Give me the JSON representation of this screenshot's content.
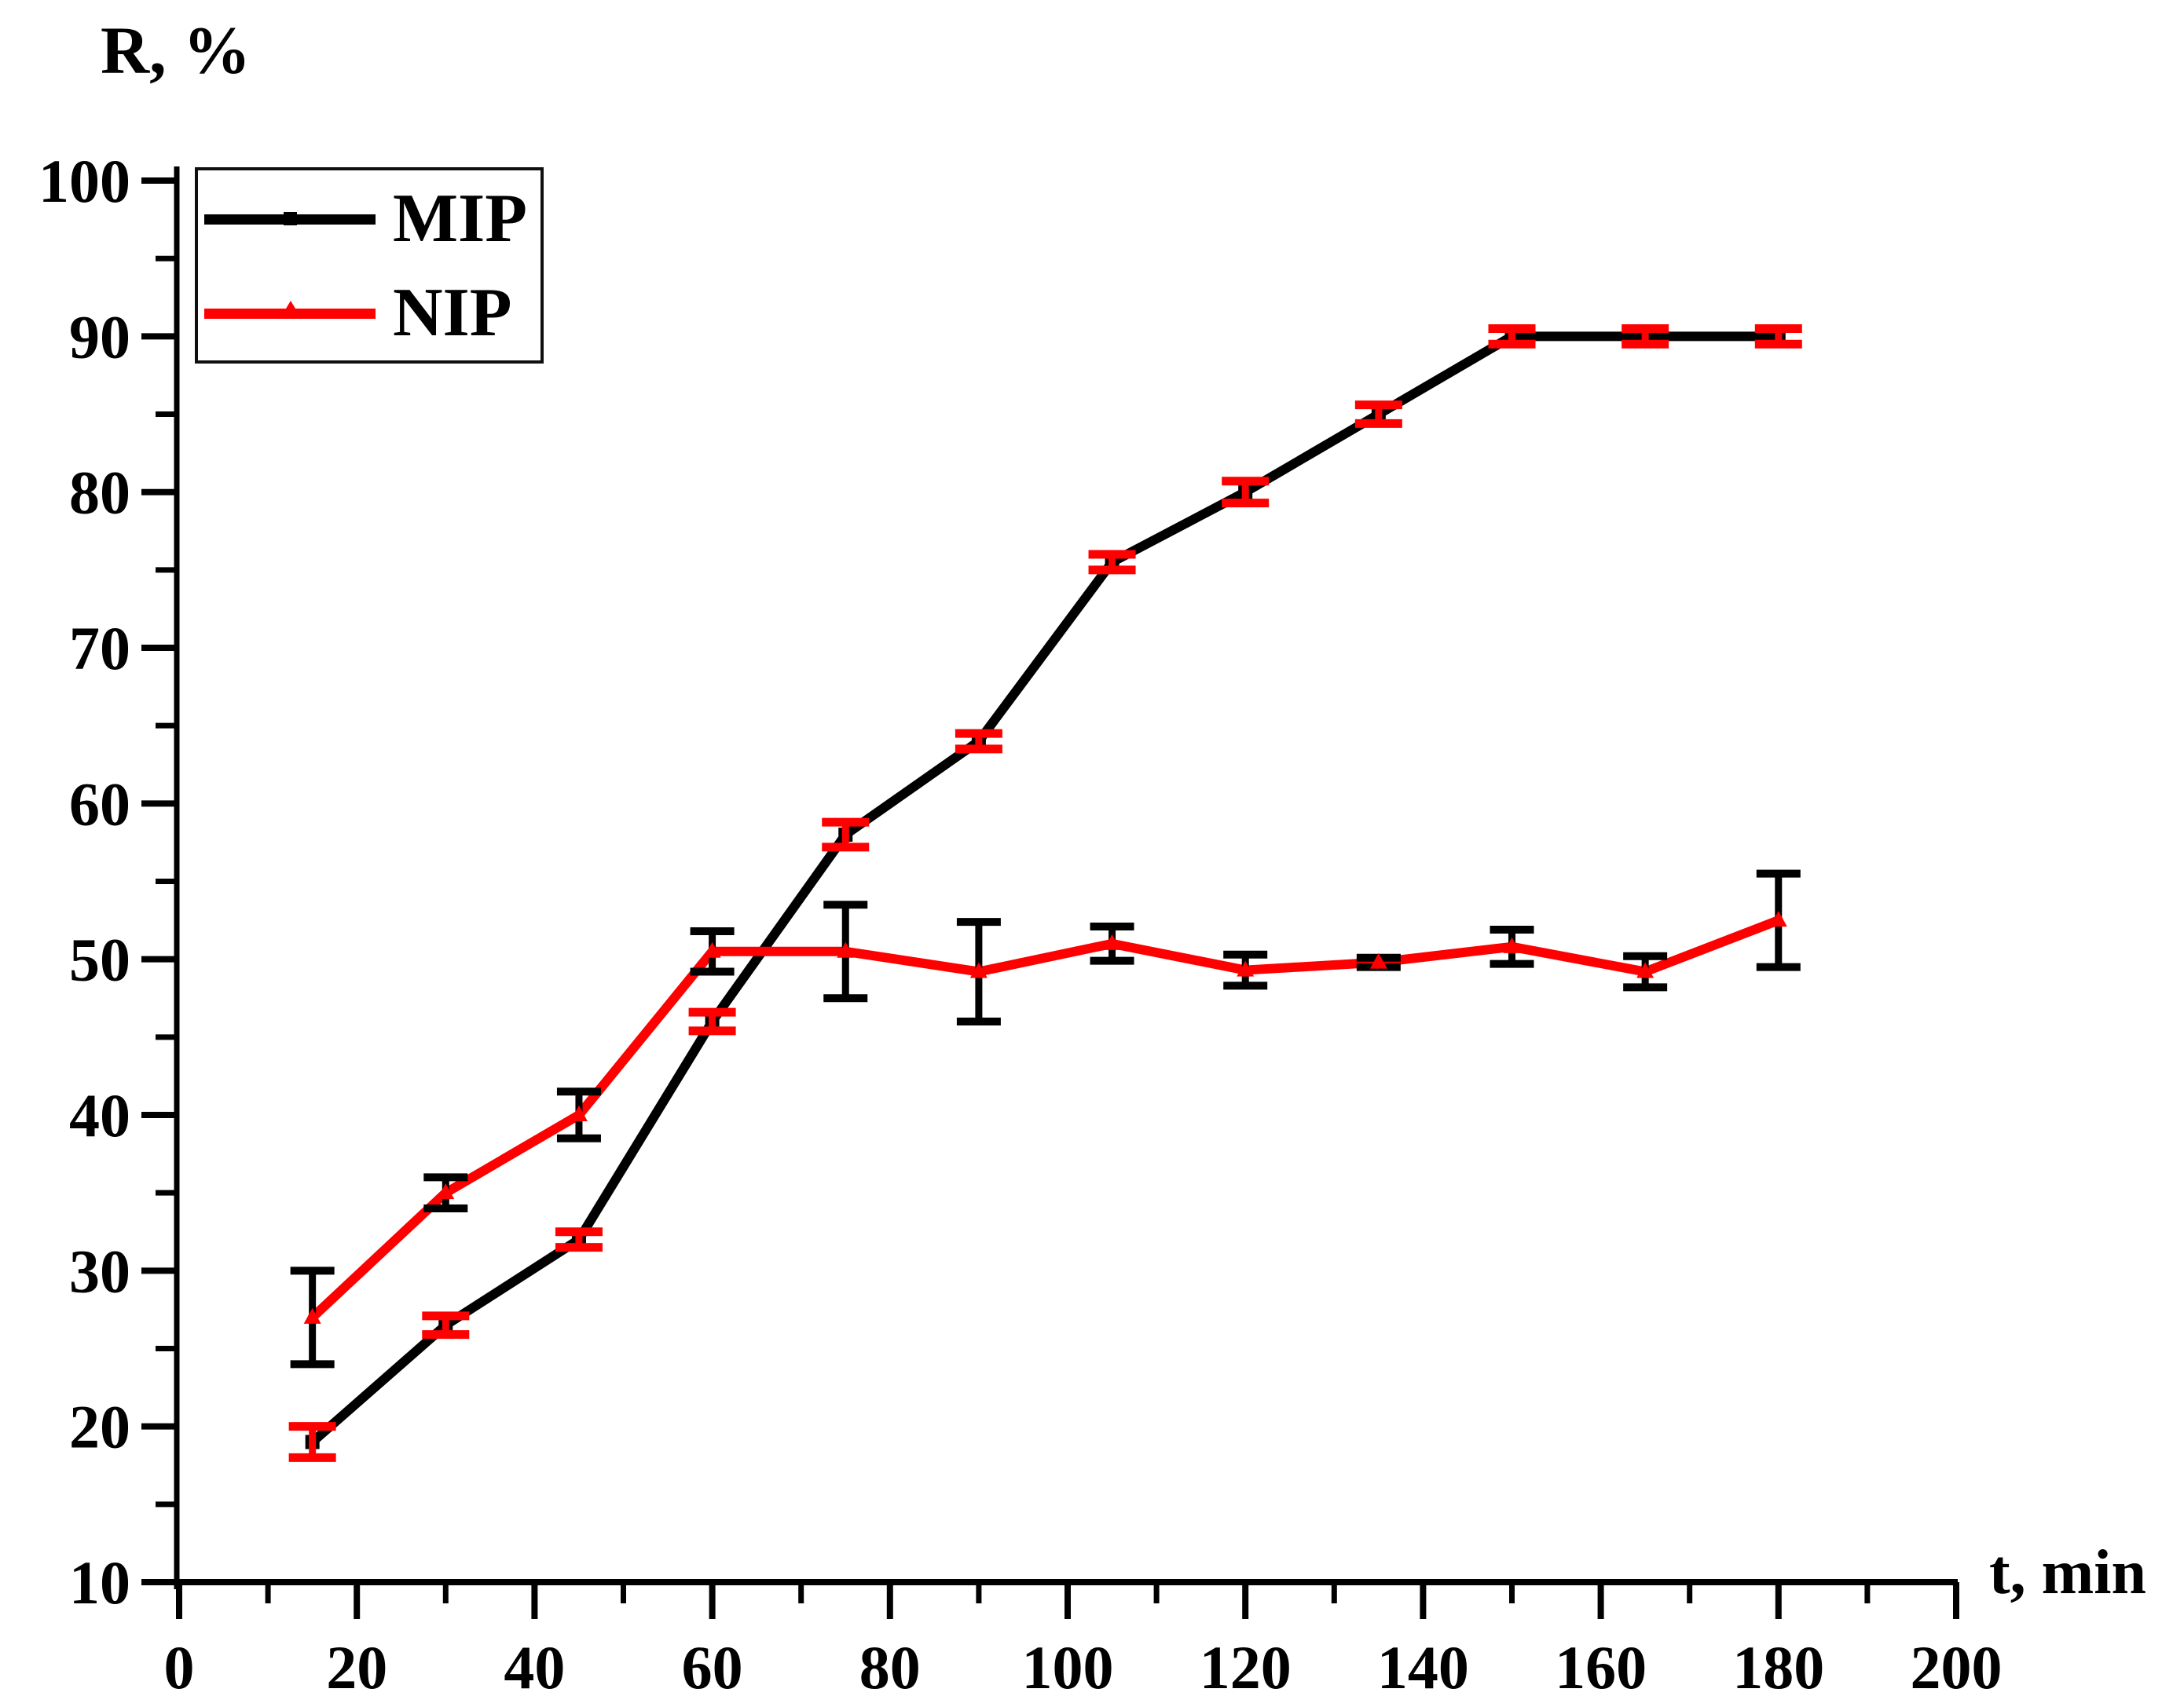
{
  "figure": {
    "y_axis_title": "R, %",
    "x_axis_title": "t, min"
  },
  "legend": {
    "position": "top-left",
    "items": [
      {
        "label": "MIP",
        "color": "#000000",
        "marker": "square"
      },
      {
        "label": "NIP",
        "color": "#ff0000",
        "marker": "triangle"
      }
    ]
  },
  "colors": {
    "mip": "#000000",
    "nip": "#ff0000",
    "mip_error_bars": "#ff0000",
    "nip_error_bars": "#000000",
    "axis": "#000000",
    "background": "#ffffff"
  },
  "chart_data": {
    "type": "line",
    "title": "",
    "xlabel": "t, min",
    "ylabel": "R, %",
    "xlim": [
      0,
      200
    ],
    "ylim": [
      10,
      100
    ],
    "x_ticks": [
      0,
      20,
      40,
      60,
      80,
      100,
      120,
      140,
      160,
      180,
      200
    ],
    "y_ticks": [
      100,
      90,
      80,
      70,
      60,
      50,
      40,
      30,
      20,
      10
    ],
    "x_minor_step": 10,
    "y_minor_step": 5,
    "grid": false,
    "legend_position": "top-left",
    "x": [
      15,
      30,
      45,
      60,
      75,
      90,
      105,
      120,
      135,
      150,
      165,
      180
    ],
    "series": [
      {
        "name": "MIP",
        "color": "#000000",
        "marker": "square",
        "error_color": "#ff0000",
        "values": [
          19,
          26.5,
          32,
          46,
          58,
          64,
          75.5,
          80,
          85,
          90,
          90,
          90
        ],
        "errors": [
          1.0,
          0.6,
          0.5,
          0.6,
          0.8,
          0.5,
          0.5,
          0.7,
          0.6,
          0.5,
          0.5,
          0.5
        ]
      },
      {
        "name": "NIP",
        "color": "#ff0000",
        "marker": "triangle",
        "error_color": "#000000",
        "values": [
          27,
          35,
          40,
          50.5,
          50.5,
          49.2,
          51,
          49.3,
          49.8,
          50.8,
          49.2,
          52.5
        ],
        "errors": [
          3.0,
          1.0,
          1.5,
          1.3,
          3.0,
          3.2,
          1.1,
          1.0,
          0.3,
          1.1,
          1.0,
          3.0
        ]
      }
    ]
  }
}
